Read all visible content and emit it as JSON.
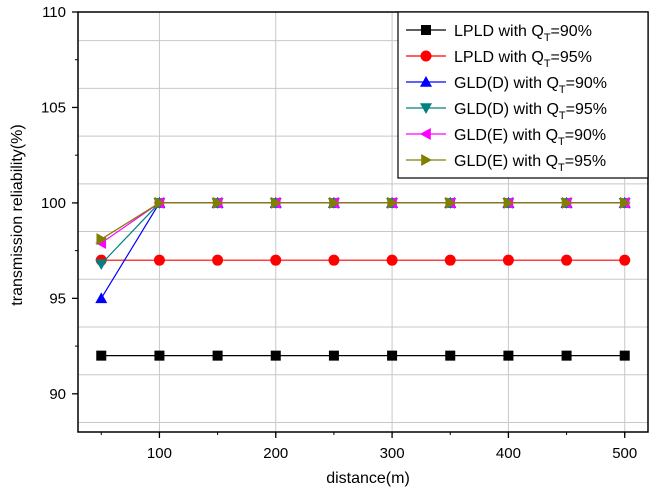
{
  "chart_data": {
    "type": "line",
    "title": "",
    "xlabel": "distance(m)",
    "ylabel": "transmission reliability(%)",
    "xlim": [
      30,
      520
    ],
    "ylim": [
      88,
      110
    ],
    "x_ticks": [
      100,
      200,
      300,
      400,
      500
    ],
    "y_ticks": [
      90,
      95,
      100,
      105,
      110
    ],
    "grid": true,
    "legend_position": "top-right",
    "x": [
      50,
      100,
      150,
      200,
      250,
      300,
      350,
      400,
      450,
      500
    ],
    "series": [
      {
        "name": "LPLD with Q_T=90%",
        "label_main": "LPLD with Q",
        "label_sub": "T",
        "label_end": "=90%",
        "color": "#000000",
        "marker": "square",
        "values": [
          92,
          92,
          92,
          92,
          92,
          92,
          92,
          92,
          92,
          92
        ]
      },
      {
        "name": "LPLD with Q_T=95%",
        "label_main": "LPLD with Q",
        "label_sub": "T",
        "label_end": "=95%",
        "color": "#ff0000",
        "marker": "circle",
        "values": [
          97,
          97,
          97,
          97,
          97,
          97,
          97,
          97,
          97,
          97
        ]
      },
      {
        "name": "GLD(D) with Q_T=90%",
        "label_main": "GLD(D) with Q",
        "label_sub": "T",
        "label_end": "=90%",
        "color": "#0000ff",
        "marker": "triangle-up",
        "values": [
          95,
          100,
          100,
          100,
          100,
          100,
          100,
          100,
          100,
          100
        ]
      },
      {
        "name": "GLD(D) with Q_T=95%",
        "label_main": "GLD(D) with Q",
        "label_sub": "T",
        "label_end": "=95%",
        "color": "#008080",
        "marker": "triangle-down",
        "values": [
          96.8,
          100,
          100,
          100,
          100,
          100,
          100,
          100,
          100,
          100
        ]
      },
      {
        "name": "GLD(E) with Q_T=90%",
        "label_main": "GLD(E) with Q",
        "label_sub": "T",
        "label_end": "=90%",
        "color": "#ff00ff",
        "marker": "triangle-left",
        "values": [
          97.9,
          100,
          100,
          100,
          100,
          100,
          100,
          100,
          100,
          100
        ]
      },
      {
        "name": "GLD(E) with Q_T=95%",
        "label_main": "GLD(E) with Q",
        "label_sub": "T",
        "label_end": "=95%",
        "color": "#808000",
        "marker": "triangle-right",
        "values": [
          98.1,
          100,
          100,
          100,
          100,
          100,
          100,
          100,
          100,
          100
        ]
      }
    ]
  }
}
